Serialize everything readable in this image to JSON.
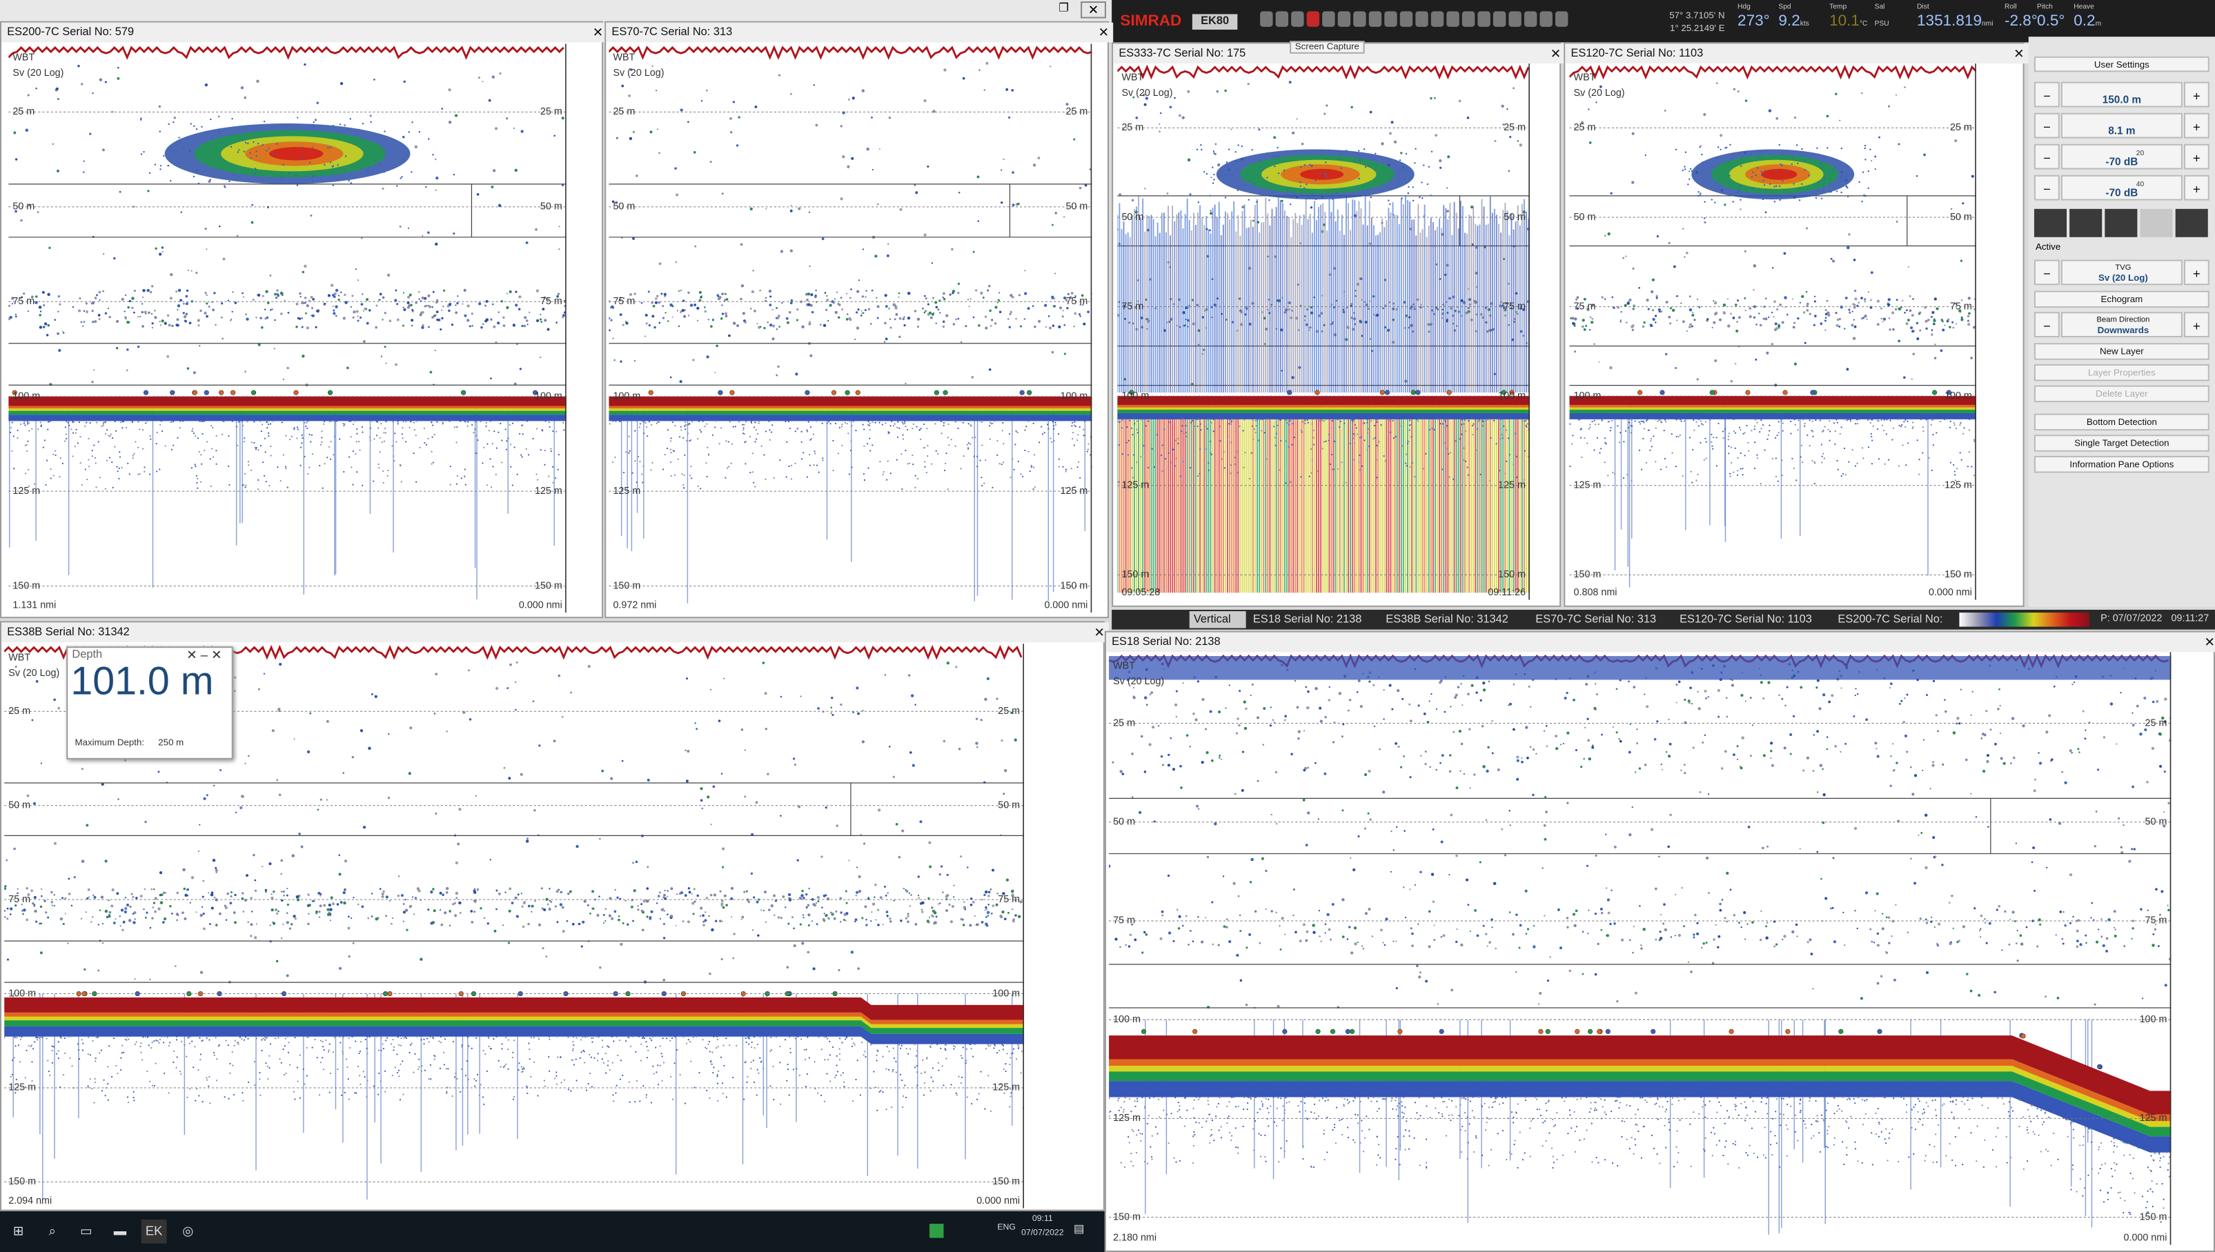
{
  "toolbar": {
    "brand": "SIMRAD",
    "product": "EK80",
    "lat": "57° 3.7105' N",
    "lon": "1° 25.2149' E",
    "readouts": [
      {
        "label": "Hdg",
        "value": "273°"
      },
      {
        "label": "Spd",
        "value": "9.2",
        "unit": "kts"
      },
      {
        "label": "Temp",
        "value": "10.1",
        "unit": "°C"
      },
      {
        "label": "Sal",
        "unit": "PSU"
      },
      {
        "label": "Dist",
        "value": "1351.819",
        "unit": "nmi"
      },
      {
        "label": "Roll",
        "value": "-2.8°"
      },
      {
        "label": "Pitch",
        "value": "0.5°"
      },
      {
        "label": "Heave",
        "value": "0.2",
        "unit": "m"
      }
    ],
    "tooltip": "Screen Capture"
  },
  "windows": [
    {
      "title": "ES200-7C Serial No: 579",
      "channel": "WBT",
      "tvg": "Sv (20 Log)",
      "depth_labels": [
        "25 m",
        "50 m",
        "75 m",
        "100 m",
        "125 m",
        "150 m"
      ],
      "footer_left": "1.131 nmi",
      "footer_right": "0.000 nmi"
    },
    {
      "title": "ES70-7C Serial No: 313",
      "channel": "WBT",
      "tvg": "Sv (20 Log)",
      "depth_labels": [
        "25 m",
        "50 m",
        "75 m",
        "100 m",
        "125 m",
        "150 m"
      ],
      "footer_left": "0.972 nmi",
      "footer_right": "0.000 nmi"
    },
    {
      "title": "ES333-7C Serial No: 175",
      "channel": "WBT",
      "tvg": "Sv (20 Log)",
      "depth_labels": [
        "25 m",
        "50 m",
        "75 m",
        "100 m",
        "125 m",
        "150 m"
      ],
      "footer_left": "09:05:28",
      "footer_right": "09:11:26"
    },
    {
      "title": "ES120-7C Serial No: 1103",
      "channel": "WBT",
      "tvg": "Sv (20 Log)",
      "depth_labels": [
        "25 m",
        "50 m",
        "75 m",
        "100 m",
        "125 m",
        "150 m"
      ],
      "footer_left": "0.808 nmi",
      "footer_right": "0.000 nmi"
    },
    {
      "title": "ES38B Serial No: 31342",
      "channel": "WBT",
      "tvg": "Sv (20 Log)",
      "depth_labels": [
        "25 m",
        "50 m",
        "75 m",
        "100 m",
        "125 m",
        "150 m"
      ],
      "footer_left": "2.094 nmi",
      "footer_right": "0.000 nmi"
    },
    {
      "title": "ES18 Serial No: 2138",
      "channel": "WBT",
      "tvg": "Sv (20 Log)",
      "depth_labels": [
        "25 m",
        "50 m",
        "75 m",
        "100 m",
        "125 m",
        "150 m"
      ],
      "footer_left": "2.180 nmi",
      "footer_right": "0.000 nmi"
    }
  ],
  "side_panel": {
    "header": "User Settings",
    "controls": [
      {
        "value": "150.0 m"
      },
      {
        "value": "8.1 m"
      },
      {
        "value": "-70 dB",
        "icon_label": "20"
      },
      {
        "value": "-70 dB",
        "icon_label": "40"
      }
    ],
    "active_label": "Active",
    "tvg": {
      "label": "TVG",
      "value": "Sv (20 Log)"
    },
    "echogram": "Echogram",
    "beam": {
      "label": "Beam Direction",
      "value": "Downwards"
    },
    "buttons": [
      {
        "label": "New Layer",
        "enabled": true
      },
      {
        "label": "Layer Properties",
        "enabled": false
      },
      {
        "label": "Delete Layer",
        "enabled": false
      },
      {
        "label": "Bottom Detection",
        "enabled": true
      },
      {
        "label": "Single Target Detection",
        "enabled": true
      },
      {
        "label": "Information Pane Options",
        "enabled": true
      }
    ]
  },
  "tabs": {
    "items": [
      "Vertical",
      "ES18 Serial No: 2138",
      "ES38B Serial No: 31342",
      "ES70-7C Serial No: 313",
      "ES120-7C Serial No: 1103",
      "ES200-7C Serial No:"
    ],
    "status": "P: 07/07/2022",
    "time": "09:11:27"
  },
  "depth_popup": {
    "title": "Depth",
    "value": "101.0 m",
    "max_label": "Maximum Depth:",
    "max_value": "250 m"
  },
  "taskbar": {
    "lang": "ENG",
    "time": "09:11",
    "date": "07/07/2022"
  }
}
